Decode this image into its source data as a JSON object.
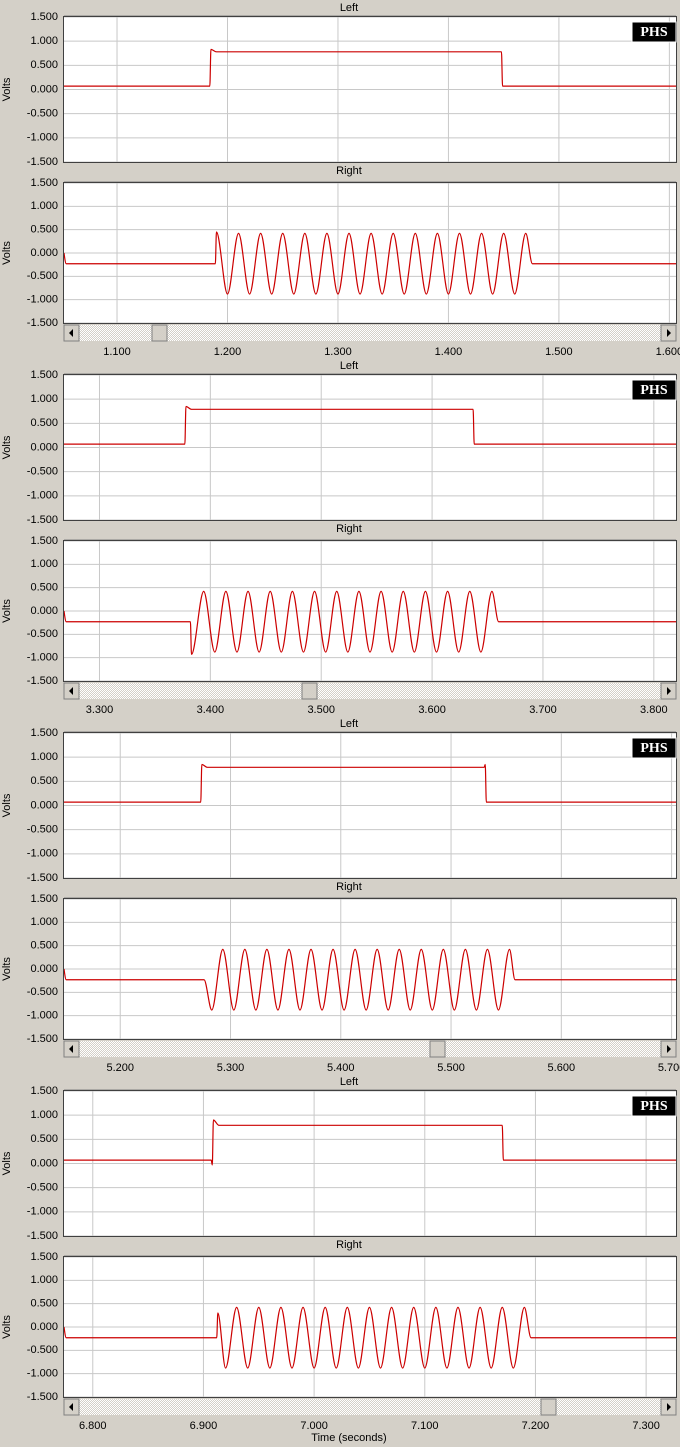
{
  "chart_data": [
    {
      "type": "line",
      "y_label": "Volts",
      "badge": "PHS",
      "xlim": [
        1.052,
        1.606
      ],
      "xticks": [
        {
          "value": 1.1,
          "label": "1.100"
        },
        {
          "value": 1.2,
          "label": "1.200"
        },
        {
          "value": 1.3,
          "label": "1.300"
        },
        {
          "value": 1.4,
          "label": "1.400"
        },
        {
          "value": 1.5,
          "label": "1.500"
        },
        {
          "value": 1.6,
          "label": "1.600"
        }
      ],
      "ylim": [
        -1.5,
        1.5
      ],
      "yticks": [
        {
          "value": 1.5,
          "label": "1.500"
        },
        {
          "value": 1,
          "label": "1.000"
        },
        {
          "value": 0.5,
          "label": "0.500"
        },
        {
          "value": 0,
          "label": "0.000"
        },
        {
          "value": -0.5,
          "label": "-0.500"
        },
        {
          "value": -1,
          "label": "-1.000"
        },
        {
          "value": -1.5,
          "label": "-1.500"
        }
      ],
      "grid": true,
      "series": [
        {
          "name": "Left",
          "color": "#cc0000",
          "x": [
            1.052,
            1.184,
            1.185,
            1.19,
            1.448,
            1.449,
            1.606
          ],
          "values": [
            0.07,
            0.07,
            0.83,
            0.78,
            0.78,
            0.07,
            0.07
          ]
        },
        {
          "name": "Right",
          "color": "#cc0000",
          "x": [
            1.052,
            1.054,
            1.189,
            1.19,
            1.2,
            1.21,
            1.22,
            1.23,
            1.24,
            1.25,
            1.26,
            1.27,
            1.28,
            1.29,
            1.3,
            1.31,
            1.32,
            1.33,
            1.34,
            1.35,
            1.36,
            1.37,
            1.38,
            1.39,
            1.4,
            1.41,
            1.42,
            1.43,
            1.44,
            1.45,
            1.46,
            1.47,
            1.476,
            1.606
          ],
          "values": [
            0,
            -0.23,
            -0.23,
            0.45,
            -0.88,
            0.42,
            -0.88,
            0.42,
            -0.88,
            0.42,
            -0.88,
            0.42,
            -0.88,
            0.42,
            -0.88,
            0.42,
            -0.88,
            0.42,
            -0.88,
            0.42,
            -0.88,
            0.42,
            -0.88,
            0.42,
            -0.88,
            0.42,
            -0.88,
            0.42,
            -0.88,
            0.42,
            -0.88,
            0.42,
            -0.23,
            -0.23
          ]
        }
      ]
    },
    {
      "type": "line",
      "y_label": "Volts",
      "badge": "PHS",
      "xlim": [
        3.268,
        3.82
      ],
      "xticks": [
        {
          "value": 3.3,
          "label": "3.300"
        },
        {
          "value": 3.4,
          "label": "3.400"
        },
        {
          "value": 3.5,
          "label": "3.500"
        },
        {
          "value": 3.6,
          "label": "3.600"
        },
        {
          "value": 3.7,
          "label": "3.700"
        },
        {
          "value": 3.8,
          "label": "3.800"
        }
      ],
      "ylim": [
        -1.5,
        1.5
      ],
      "yticks": [
        {
          "value": 1.5,
          "label": "1.500"
        },
        {
          "value": 1,
          "label": "1.000"
        },
        {
          "value": 0.5,
          "label": "0.500"
        },
        {
          "value": 0,
          "label": "0.000"
        },
        {
          "value": -0.5,
          "label": "-0.500"
        },
        {
          "value": -1,
          "label": "-1.000"
        },
        {
          "value": -1.5,
          "label": "-1.500"
        }
      ],
      "grid": true,
      "series": [
        {
          "name": "Left",
          "color": "#cc0000",
          "x": [
            3.268,
            3.377,
            3.378,
            3.383,
            3.637,
            3.638,
            3.82
          ],
          "values": [
            0.07,
            0.07,
            0.85,
            0.79,
            0.79,
            0.07,
            0.07
          ]
        },
        {
          "name": "Right",
          "color": "#cc0000",
          "x": [
            3.268,
            3.27,
            3.382,
            3.383,
            3.394,
            3.404,
            3.414,
            3.424,
            3.434,
            3.444,
            3.454,
            3.464,
            3.474,
            3.484,
            3.494,
            3.504,
            3.514,
            3.524,
            3.534,
            3.544,
            3.554,
            3.564,
            3.574,
            3.584,
            3.594,
            3.604,
            3.614,
            3.624,
            3.634,
            3.644,
            3.654,
            3.66,
            3.82
          ],
          "values": [
            0,
            -0.23,
            -0.23,
            -0.93,
            0.42,
            -0.88,
            0.42,
            -0.88,
            0.42,
            -0.88,
            0.42,
            -0.88,
            0.42,
            -0.88,
            0.42,
            -0.88,
            0.42,
            -0.88,
            0.42,
            -0.88,
            0.42,
            -0.88,
            0.42,
            -0.88,
            0.42,
            -0.88,
            0.42,
            -0.88,
            0.42,
            -0.88,
            0.42,
            -0.23,
            -0.23
          ]
        }
      ]
    },
    {
      "type": "line",
      "y_label": "Volts",
      "badge": "PHS",
      "xlim": [
        5.149,
        5.704
      ],
      "xticks": [
        {
          "value": 5.2,
          "label": "5.200"
        },
        {
          "value": 5.3,
          "label": "5.300"
        },
        {
          "value": 5.4,
          "label": "5.400"
        },
        {
          "value": 5.5,
          "label": "5.500"
        },
        {
          "value": 5.6,
          "label": "5.600"
        },
        {
          "value": 5.7,
          "label": "5.700"
        }
      ],
      "ylim": [
        -1.5,
        1.5
      ],
      "yticks": [
        {
          "value": 1.5,
          "label": "1.500"
        },
        {
          "value": 1,
          "label": "1.000"
        },
        {
          "value": 0.5,
          "label": "0.500"
        },
        {
          "value": 0,
          "label": "0.000"
        },
        {
          "value": -0.5,
          "label": "-0.500"
        },
        {
          "value": -1,
          "label": "-1.000"
        },
        {
          "value": -1.5,
          "label": "-1.500"
        }
      ],
      "grid": true,
      "series": [
        {
          "name": "Left",
          "color": "#cc0000",
          "x": [
            5.149,
            5.273,
            5.274,
            5.279,
            5.53,
            5.531,
            5.532,
            5.704
          ],
          "values": [
            0.07,
            0.07,
            0.85,
            0.79,
            0.79,
            0.85,
            0.07,
            0.07
          ]
        },
        {
          "name": "Right",
          "color": "#cc0000",
          "x": [
            5.149,
            5.151,
            5.276,
            5.283,
            5.293,
            5.303,
            5.313,
            5.323,
            5.333,
            5.343,
            5.353,
            5.363,
            5.373,
            5.383,
            5.393,
            5.403,
            5.413,
            5.423,
            5.433,
            5.443,
            5.453,
            5.463,
            5.473,
            5.483,
            5.493,
            5.503,
            5.513,
            5.523,
            5.533,
            5.543,
            5.553,
            5.558,
            5.704
          ],
          "values": [
            0,
            -0.23,
            -0.23,
            -0.88,
            0.42,
            -0.88,
            0.42,
            -0.88,
            0.42,
            -0.88,
            0.42,
            -0.88,
            0.42,
            -0.88,
            0.42,
            -0.88,
            0.42,
            -0.88,
            0.42,
            -0.88,
            0.42,
            -0.88,
            0.42,
            -0.88,
            0.42,
            -0.88,
            0.42,
            -0.88,
            0.42,
            -0.88,
            0.42,
            -0.23,
            -0.23
          ]
        }
      ]
    },
    {
      "type": "line",
      "y_label": "Volts",
      "badge": "PHS",
      "x_label": "Time (seconds)",
      "xlim": [
        6.774,
        7.327
      ],
      "xticks": [
        {
          "value": 6.8,
          "label": "6.800"
        },
        {
          "value": 6.9,
          "label": "6.900"
        },
        {
          "value": 7,
          "label": "7.000"
        },
        {
          "value": 7.1,
          "label": "7.100"
        },
        {
          "value": 7.2,
          "label": "7.200"
        },
        {
          "value": 7.3,
          "label": "7.300"
        }
      ],
      "ylim": [
        -1.5,
        1.5
      ],
      "yticks": [
        {
          "value": 1.5,
          "label": "1.500"
        },
        {
          "value": 1,
          "label": "1.000"
        },
        {
          "value": 0.5,
          "label": "0.500"
        },
        {
          "value": 0,
          "label": "0.000"
        },
        {
          "value": -0.5,
          "label": "-0.500"
        },
        {
          "value": -1,
          "label": "-1.000"
        },
        {
          "value": -1.5,
          "label": "-1.500"
        }
      ],
      "grid": true,
      "series": [
        {
          "name": "Left",
          "color": "#cc0000",
          "x": [
            6.774,
            6.907,
            6.908,
            6.909,
            6.914,
            7.17,
            7.171,
            7.327
          ],
          "values": [
            0.07,
            0.07,
            -0.03,
            0.9,
            0.79,
            0.79,
            0.07,
            0.07
          ]
        },
        {
          "name": "Right",
          "color": "#cc0000",
          "x": [
            6.774,
            6.776,
            6.912,
            6.913,
            6.92,
            6.93,
            6.94,
            6.95,
            6.96,
            6.97,
            6.98,
            6.99,
            7,
            7.01,
            7.02,
            7.03,
            7.04,
            7.05,
            7.06,
            7.07,
            7.08,
            7.09,
            7.1,
            7.11,
            7.12,
            7.13,
            7.14,
            7.15,
            7.16,
            7.17,
            7.18,
            7.19,
            7.196,
            7.327
          ],
          "values": [
            0,
            -0.23,
            -0.23,
            0.3,
            -0.88,
            0.42,
            -0.88,
            0.42,
            -0.88,
            0.42,
            -0.88,
            0.42,
            -0.88,
            0.42,
            -0.88,
            0.42,
            -0.88,
            0.42,
            -0.88,
            0.42,
            -0.88,
            0.42,
            -0.88,
            0.42,
            -0.88,
            0.42,
            -0.88,
            0.42,
            -0.88,
            0.42,
            -0.88,
            0.42,
            -0.23,
            -0.23
          ]
        }
      ]
    }
  ]
}
